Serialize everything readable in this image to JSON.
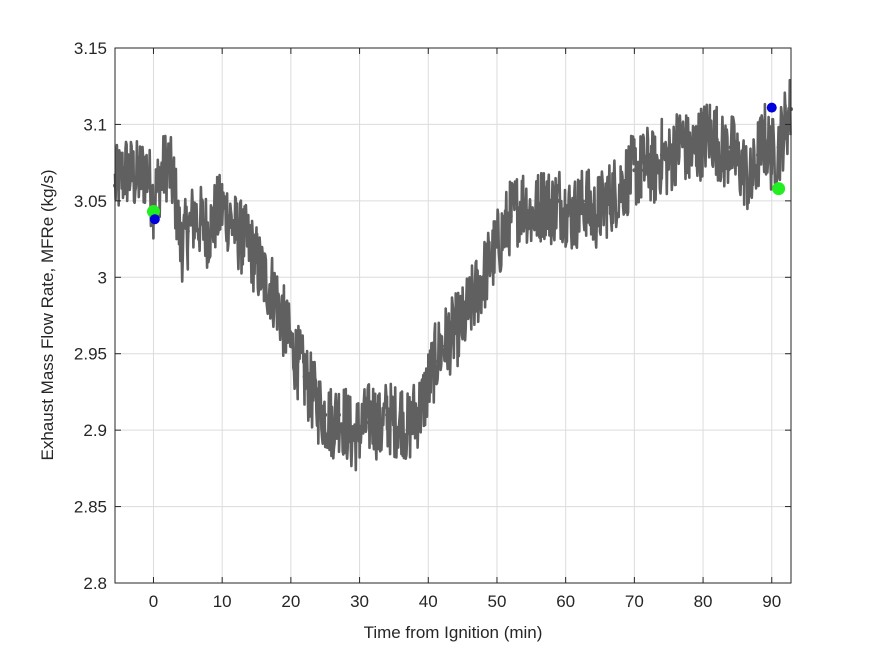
{
  "chart_data": {
    "type": "line",
    "title": "",
    "xlabel": "Time from Ignition (min)",
    "ylabel": "Exhaust Mass Flow Rate, MFRe (kg/s)",
    "xlim": [
      -5.6,
      92.8
    ],
    "ylim": [
      2.8,
      3.15
    ],
    "xticks": [
      0,
      10,
      20,
      30,
      40,
      50,
      60,
      70,
      80,
      90
    ],
    "xtick_labels": [
      "0",
      "10",
      "20",
      "30",
      "40",
      "50",
      "60",
      "70",
      "80",
      "90"
    ],
    "yticks": [
      2.8,
      2.85,
      2.9,
      2.95,
      3.0,
      3.05,
      3.1,
      3.15
    ],
    "ytick_labels": [
      "2.8",
      "2.85",
      "2.9",
      "2.95",
      "3",
      "3.05",
      "3.1",
      "3.15"
    ],
    "grid": true,
    "legend": "none",
    "series": [
      {
        "style": "line-with-dot-markers",
        "color": "#606060",
        "x": [
          -5.6,
          -4,
          -2.5,
          -1,
          0,
          1,
          2,
          3,
          4,
          5,
          6,
          7,
          8,
          9,
          10,
          11,
          12,
          13,
          14,
          15,
          16,
          17,
          18,
          19,
          20,
          21,
          22,
          23,
          24,
          25,
          26,
          27,
          28,
          29,
          30,
          31,
          32,
          33,
          34,
          35,
          36,
          37,
          38,
          39,
          40,
          41,
          42,
          43,
          44,
          45,
          46,
          47,
          48,
          49,
          50,
          51,
          52,
          53,
          54,
          55,
          56,
          57,
          58,
          59,
          60,
          61,
          62,
          63,
          64,
          65,
          66,
          67,
          68,
          69,
          70,
          71,
          72,
          73,
          74,
          75,
          76,
          77,
          78,
          79,
          80,
          81,
          82,
          83,
          84,
          85,
          86,
          87,
          88,
          89,
          90,
          91,
          92,
          92.8
        ],
        "y": [
          3.06,
          3.07,
          3.065,
          3.07,
          3.05,
          3.065,
          3.075,
          3.06,
          3.02,
          3.03,
          3.04,
          3.035,
          3.03,
          3.04,
          3.045,
          3.04,
          3.03,
          3.025,
          3.02,
          3.01,
          3.0,
          2.995,
          2.985,
          2.97,
          2.955,
          2.945,
          2.935,
          2.925,
          2.915,
          2.91,
          2.905,
          2.91,
          2.905,
          2.895,
          2.9,
          2.905,
          2.91,
          2.9,
          2.91,
          2.905,
          2.91,
          2.9,
          2.91,
          2.915,
          2.93,
          2.945,
          2.955,
          2.96,
          2.965,
          2.97,
          2.98,
          2.99,
          3.0,
          3.01,
          3.02,
          3.03,
          3.04,
          3.045,
          3.05,
          3.04,
          3.045,
          3.05,
          3.045,
          3.05,
          3.045,
          3.04,
          3.045,
          3.05,
          3.04,
          3.045,
          3.05,
          3.055,
          3.06,
          3.065,
          3.07,
          3.07,
          3.075,
          3.07,
          3.08,
          3.075,
          3.085,
          3.09,
          3.08,
          3.085,
          3.09,
          3.095,
          3.09,
          3.08,
          3.085,
          3.075,
          3.07,
          3.06,
          3.08,
          3.09,
          3.08,
          3.085,
          3.1,
          3.11
        ]
      }
    ],
    "markers": [
      {
        "name": "green-start",
        "x": 0,
        "y": 3.043,
        "color": "#22ee22"
      },
      {
        "name": "blue-start",
        "x": 0.2,
        "y": 3.038,
        "color": "#0000dd"
      },
      {
        "name": "blue-end",
        "x": 90,
        "y": 3.111,
        "color": "#0000dd"
      },
      {
        "name": "green-end",
        "x": 91,
        "y": 3.058,
        "color": "#22ee22"
      }
    ]
  }
}
